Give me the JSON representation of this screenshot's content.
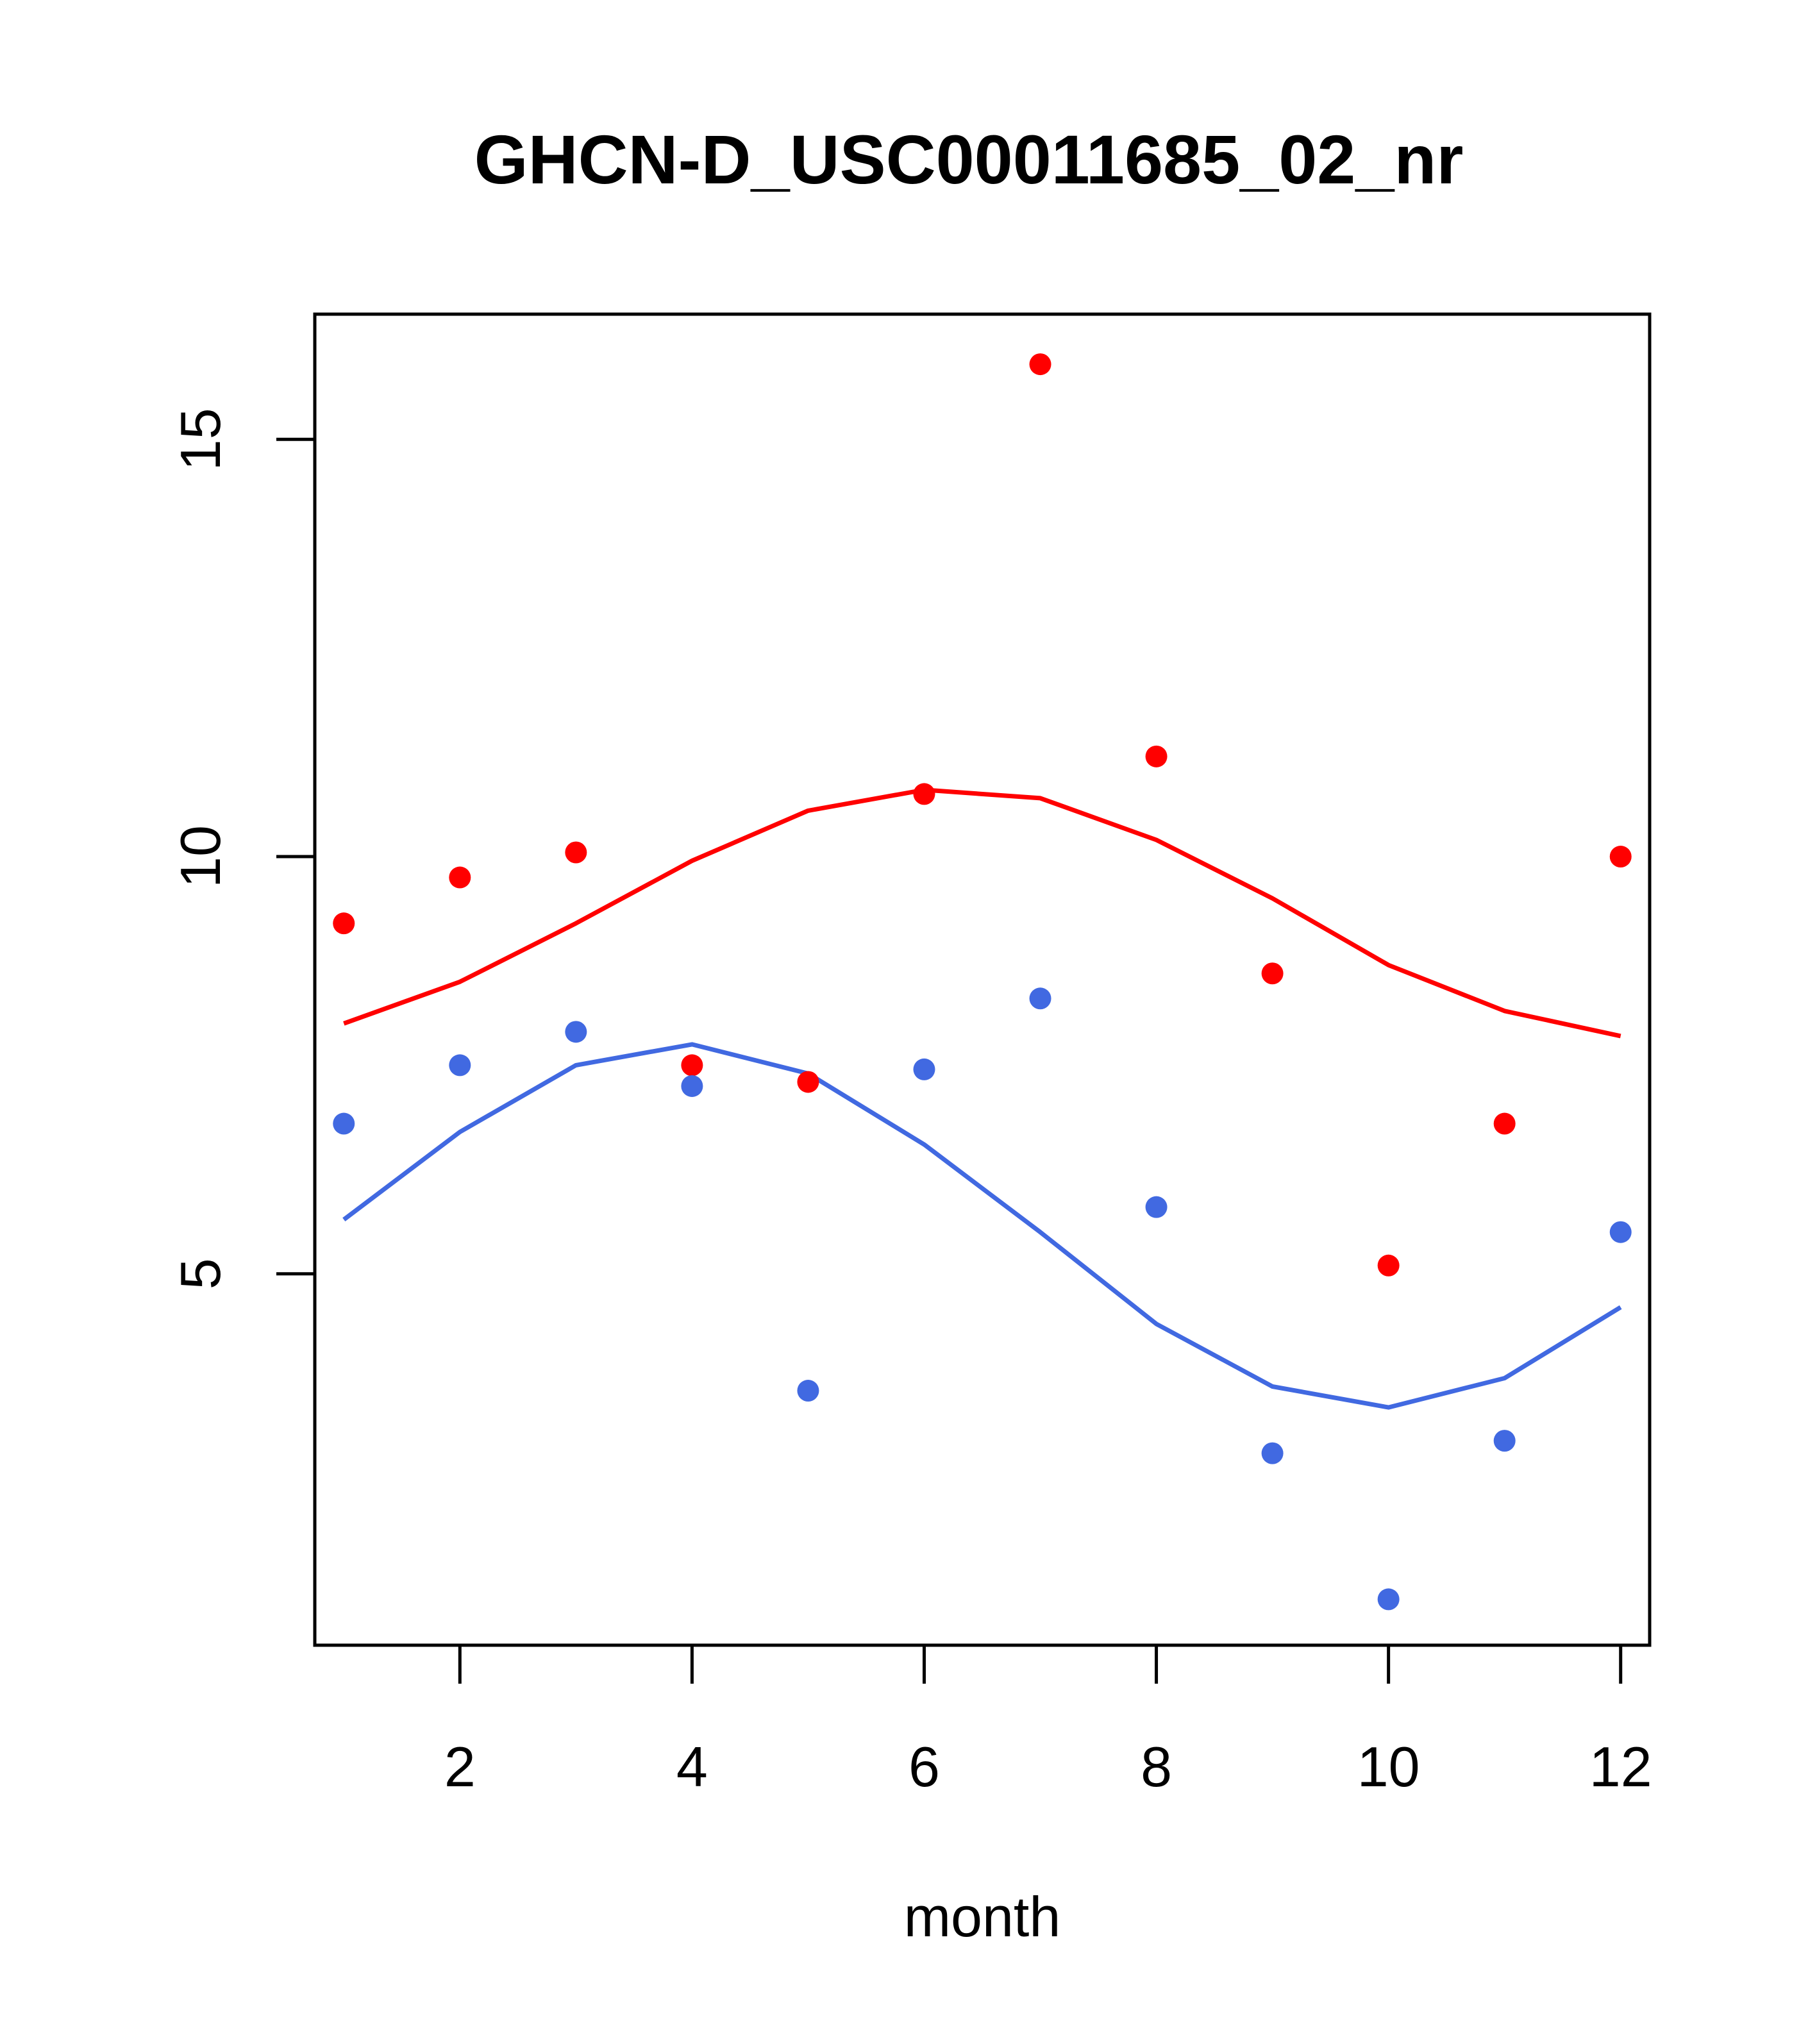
{
  "chart_data": {
    "type": "scatter",
    "title": "GHCN-D_USC00011685_02_nr",
    "xlabel": "month",
    "ylabel": "",
    "xlim": [
      0.75,
      12.25
    ],
    "ylim": [
      0.55,
      16.5
    ],
    "xticks": [
      2,
      4,
      6,
      8,
      10,
      12
    ],
    "yticks": [
      5,
      10,
      15
    ],
    "grid": false,
    "series": [
      {
        "kind": "points",
        "color": "#ff0000",
        "x": [
          1,
          2,
          3,
          4,
          5,
          6,
          7,
          8,
          9,
          10,
          11,
          12
        ],
        "y": [
          9.2,
          9.75,
          10.05,
          7.5,
          7.3,
          10.75,
          15.9,
          11.2,
          8.6,
          5.1,
          6.8,
          10.0
        ]
      },
      {
        "kind": "points",
        "color": "#4169e1",
        "x": [
          1,
          2,
          3,
          4,
          5,
          6,
          7,
          8,
          9,
          10,
          11,
          12
        ],
        "y": [
          6.8,
          7.5,
          7.9,
          7.25,
          3.6,
          7.45,
          8.3,
          5.8,
          2.85,
          1.1,
          3.0,
          5.5
        ]
      },
      {
        "kind": "line",
        "color": "#ff0000",
        "x": [
          1,
          2,
          3,
          4,
          5,
          6,
          7,
          8,
          9,
          10,
          11,
          12
        ],
        "y": [
          8.0,
          8.5,
          9.2,
          9.95,
          10.55,
          10.8,
          10.7,
          10.2,
          9.5,
          8.7,
          8.15,
          7.85
        ]
      },
      {
        "kind": "line",
        "color": "#4169e1",
        "x": [
          1,
          2,
          3,
          4,
          5,
          6,
          7,
          8,
          9,
          10,
          11,
          12
        ],
        "y": [
          5.65,
          6.7,
          7.5,
          7.75,
          7.4,
          6.55,
          5.5,
          4.4,
          3.65,
          3.4,
          3.75,
          4.6
        ]
      }
    ]
  }
}
